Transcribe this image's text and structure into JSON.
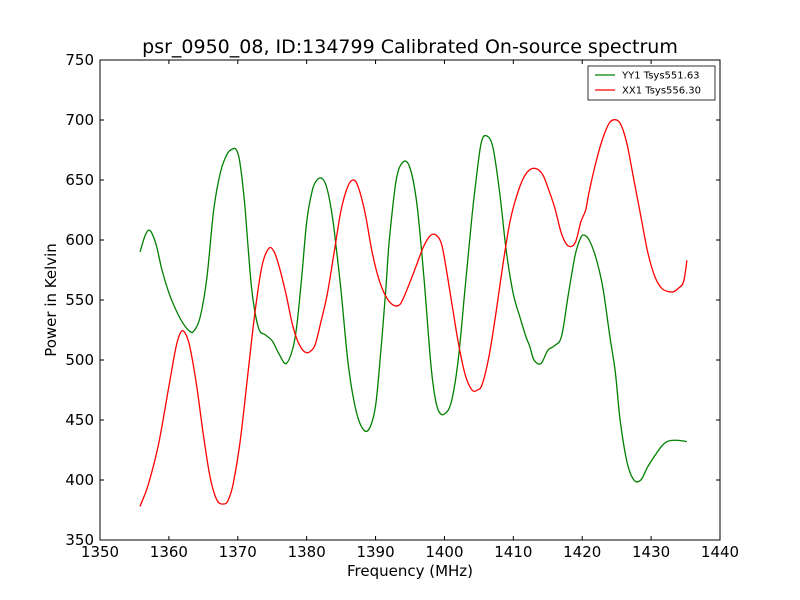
{
  "chart_data": {
    "type": "line",
    "title": "psr_0950_08, ID:134799 Calibrated On-source spectrum",
    "xlabel": "Frequency (MHz)",
    "ylabel": "Power in Kelvin",
    "xlim": [
      1350,
      1440
    ],
    "ylim": [
      350,
      750
    ],
    "xticks": [
      1350,
      1360,
      1370,
      1380,
      1390,
      1400,
      1410,
      1420,
      1430,
      1440
    ],
    "yticks": [
      350,
      400,
      450,
      500,
      550,
      600,
      650,
      700,
      750
    ],
    "xtick_labels": [
      "1350",
      "1360",
      "1370",
      "1380",
      "1390",
      "1400",
      "1410",
      "1420",
      "1430",
      "1440"
    ],
    "ytick_labels": [
      "350",
      "400",
      "450",
      "500",
      "550",
      "600",
      "650",
      "700",
      "750"
    ],
    "grid": false,
    "legend_position": "top-right",
    "series": [
      {
        "name": "YY1 Tsys551.63",
        "color": "#008000",
        "x": [
          1355.8,
          1356.5,
          1357.0,
          1357.5,
          1358.2,
          1359.0,
          1360.0,
          1361.0,
          1362.0,
          1363.0,
          1363.6,
          1364.5,
          1365.5,
          1366.5,
          1367.5,
          1368.5,
          1369.3,
          1369.8,
          1370.3,
          1371.0,
          1372.0,
          1373.0,
          1374.0,
          1375.0,
          1376.0,
          1377.0,
          1378.0,
          1378.6,
          1379.3,
          1380.0,
          1380.8,
          1381.5,
          1382.3,
          1383.0,
          1383.8,
          1384.3,
          1385.0,
          1386.0,
          1387.0,
          1388.0,
          1389.0,
          1390.0,
          1390.8,
          1391.5,
          1392.0,
          1393.0,
          1394.0,
          1395.0,
          1396.0,
          1397.0,
          1398.0,
          1398.6,
          1399.2,
          1400.0,
          1401.0,
          1402.0,
          1403.0,
          1404.0,
          1404.6,
          1405.3,
          1406.0,
          1407.0,
          1408.0,
          1409.0,
          1410.0,
          1411.0,
          1411.8,
          1412.4,
          1413.0,
          1414.0,
          1415.0,
          1416.0,
          1417.0,
          1418.0,
          1419.0,
          1419.8,
          1420.3,
          1421.0,
          1422.0,
          1423.0,
          1424.0,
          1424.8,
          1425.5,
          1426.5,
          1427.5,
          1428.5,
          1429.5,
          1430.5,
          1431.5,
          1432.3,
          1433.0,
          1434.0,
          1435.2
        ],
        "y": [
          590,
          603,
          608,
          606,
          595,
          575,
          556,
          542,
          531,
          524,
          524,
          535,
          568,
          625,
          657,
          672,
          676,
          675,
          665,
          630,
          560,
          527,
          521,
          516,
          505,
          497,
          510,
          530,
          570,
          615,
          641,
          650,
          651,
          642,
          617,
          593,
          557,
          498,
          462,
          444,
          442,
          462,
          510,
          560,
          600,
          650,
          665,
          660,
          630,
          570,
          498,
          470,
          457,
          455,
          465,
          500,
          560,
          620,
          650,
          680,
          687,
          678,
          640,
          590,
          555,
          535,
          520,
          511,
          500,
          497,
          508,
          512,
          520,
          555,
          588,
          602,
          604,
          600,
          585,
          560,
          520,
          490,
          450,
          415,
          400,
          400,
          411,
          420,
          428,
          432,
          433,
          433,
          432
        ]
      },
      {
        "name": "XX1 Tsys556.30",
        "color": "#ff0000",
        "x": [
          1355.8,
          1357.0,
          1358.5,
          1360.0,
          1361.0,
          1361.7,
          1362.3,
          1363.0,
          1364.0,
          1365.0,
          1366.0,
          1367.0,
          1368.0,
          1368.6,
          1369.3,
          1370.3,
          1371.5,
          1372.5,
          1373.5,
          1374.5,
          1375.3,
          1376.0,
          1377.0,
          1378.0,
          1379.0,
          1380.0,
          1381.0,
          1381.5,
          1382.0,
          1383.0,
          1384.0,
          1385.0,
          1386.0,
          1386.8,
          1387.5,
          1388.5,
          1389.5,
          1390.5,
          1391.5,
          1392.5,
          1393.5,
          1394.3,
          1395.0,
          1396.0,
          1397.0,
          1398.0,
          1398.8,
          1399.5,
          1400.0,
          1401.0,
          1402.0,
          1403.0,
          1404.0,
          1404.8,
          1405.5,
          1406.5,
          1407.5,
          1408.5,
          1409.5,
          1410.5,
          1411.5,
          1412.5,
          1413.5,
          1414.3,
          1415.0,
          1416.0,
          1417.0,
          1418.0,
          1419.0,
          1419.8,
          1420.5,
          1421.0,
          1422.0,
          1423.0,
          1424.0,
          1425.0,
          1425.7,
          1426.5,
          1427.5,
          1428.5,
          1429.5,
          1430.5,
          1431.5,
          1432.5,
          1433.3,
          1434.0,
          1434.7,
          1435.2
        ],
        "y": [
          378,
          396,
          430,
          478,
          510,
          523,
          523,
          512,
          480,
          438,
          402,
          383,
          380,
          383,
          396,
          430,
          490,
          540,
          578,
          593,
          590,
          578,
          555,
          528,
          512,
          506,
          510,
          518,
          530,
          555,
          590,
          625,
          645,
          650,
          644,
          622,
          590,
          567,
          553,
          546,
          546,
          555,
          565,
          580,
          595,
          604,
          604,
          598,
          585,
          550,
          515,
          488,
          475,
          475,
          480,
          504,
          540,
          580,
          615,
          637,
          652,
          659,
          659,
          654,
          644,
          627,
          605,
          595,
          598,
          615,
          625,
          640,
          665,
          685,
          698,
          700,
          695,
          680,
          650,
          620,
          590,
          570,
          560,
          557,
          557,
          560,
          565,
          583
        ]
      }
    ]
  }
}
